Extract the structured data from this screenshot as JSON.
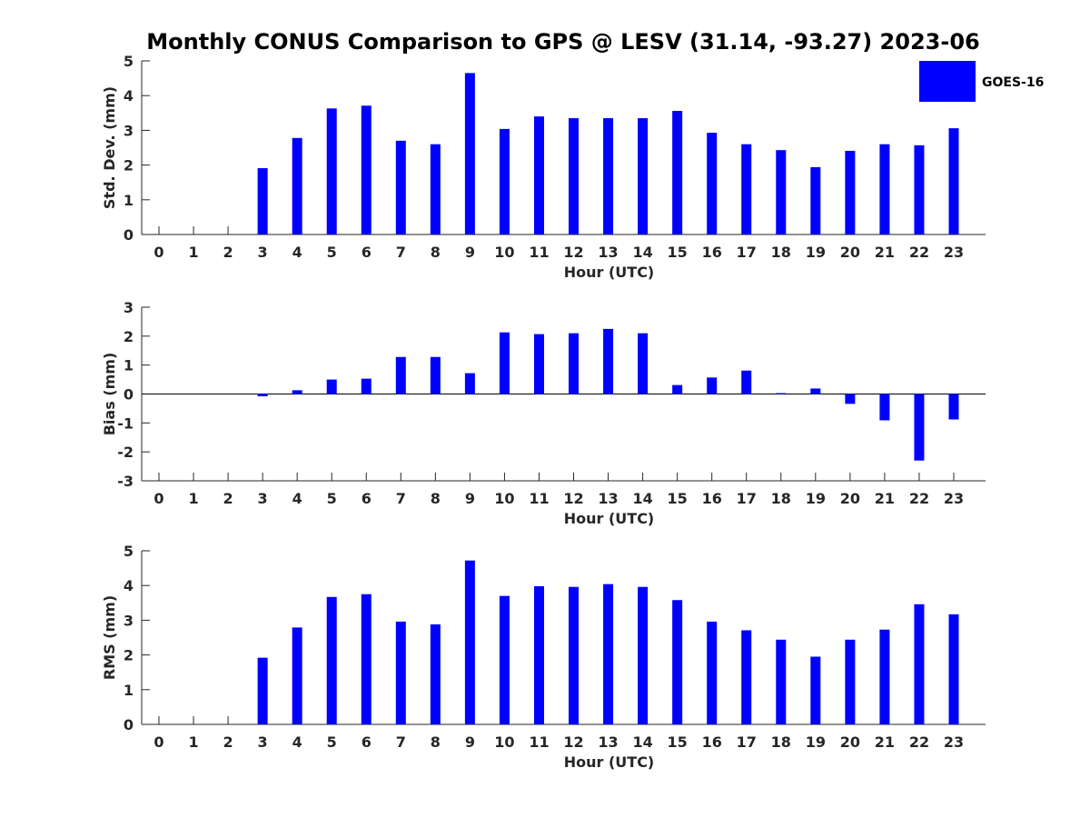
{
  "chart_data": {
    "type": "bar",
    "title": "Monthly CONUS Comparison to GPS @ LESV (31.14, -93.27) 2023-06",
    "legend": {
      "label": "GOES-16",
      "color": "#0000ff",
      "placement": "top-right"
    },
    "categories": [
      "0",
      "1",
      "2",
      "3",
      "4",
      "5",
      "6",
      "7",
      "8",
      "9",
      "10",
      "11",
      "12",
      "13",
      "14",
      "15",
      "16",
      "17",
      "18",
      "19",
      "20",
      "21",
      "22",
      "23"
    ],
    "panels": [
      {
        "ylabel": "Std. Dev. (mm)",
        "xlabel": "Hour (UTC)",
        "ylim": [
          0,
          5
        ],
        "yticks": [
          0,
          1,
          2,
          3,
          4,
          5
        ],
        "values": [
          null,
          null,
          null,
          1.91,
          2.78,
          3.63,
          3.71,
          2.7,
          2.6,
          4.65,
          3.04,
          3.4,
          3.35,
          3.35,
          3.35,
          3.56,
          2.93,
          2.6,
          2.43,
          1.94,
          2.41,
          2.6,
          2.57,
          3.06
        ]
      },
      {
        "ylabel": "Bias (mm)",
        "xlabel": "Hour (UTC)",
        "ylim": [
          -3,
          3
        ],
        "yticks": [
          -3,
          -2,
          -1,
          0,
          1,
          2,
          3
        ],
        "values": [
          null,
          null,
          null,
          -0.08,
          0.13,
          0.5,
          0.53,
          1.28,
          1.28,
          0.72,
          2.13,
          2.07,
          2.1,
          2.25,
          2.1,
          0.31,
          0.57,
          0.81,
          0.03,
          0.19,
          -0.34,
          -0.91,
          -2.3,
          -0.88
        ]
      },
      {
        "ylabel": "RMS (mm)",
        "xlabel": "Hour (UTC)",
        "ylim": [
          0,
          5
        ],
        "yticks": [
          0,
          1,
          2,
          3,
          4,
          5
        ],
        "values": [
          null,
          null,
          null,
          1.92,
          2.79,
          3.67,
          3.75,
          2.96,
          2.88,
          4.72,
          3.7,
          3.98,
          3.96,
          4.04,
          3.96,
          3.58,
          2.96,
          2.71,
          2.44,
          1.95,
          2.44,
          2.73,
          3.46,
          3.17
        ]
      }
    ]
  }
}
